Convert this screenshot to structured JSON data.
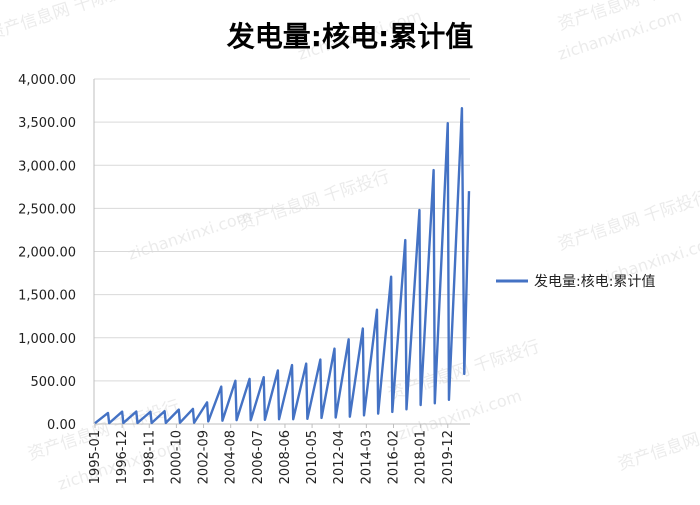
{
  "chart_data": {
    "type": "line",
    "title": "发电量:核电:累计值",
    "xlabel": "",
    "ylabel": "",
    "ylim": [
      0,
      4000
    ],
    "y_ticks": [
      0,
      500,
      1000,
      1500,
      2000,
      2500,
      3000,
      3500,
      4000
    ],
    "y_tick_labels": [
      "0.00",
      "500.00",
      "1,000.00",
      "1,500.00",
      "2,000.00",
      "2,500.00",
      "3,000.00",
      "3,500.00",
      "4,000.00"
    ],
    "x_tick_labels": [
      "1995-01",
      "1996-12",
      "1998-11",
      "2000-10",
      "2002-09",
      "2004-08",
      "2006-07",
      "2008-06",
      "2010-05",
      "2012-04",
      "2014-03",
      "2016-02",
      "2018-01",
      "2019-12"
    ],
    "grid": "horizontal",
    "legend_position": "right",
    "line_color": "#4472C4",
    "series": [
      {
        "name": "发电量:核电:累计值",
        "points": [
          [
            "1995-01",
            10
          ],
          [
            "1995-12",
            128
          ],
          [
            "1996-01",
            10
          ],
          [
            "1996-12",
            143
          ],
          [
            "1997-01",
            12
          ],
          [
            "1997-12",
            144
          ],
          [
            "1998-01",
            12
          ],
          [
            "1998-12",
            142
          ],
          [
            "1999-01",
            12
          ],
          [
            "1999-12",
            149
          ],
          [
            "2000-01",
            13
          ],
          [
            "2000-12",
            167
          ],
          [
            "2001-01",
            15
          ],
          [
            "2001-12",
            175
          ],
          [
            "2002-01",
            15
          ],
          [
            "2002-12",
            251
          ],
          [
            "2003-01",
            30
          ],
          [
            "2003-12",
            433
          ],
          [
            "2004-01",
            38
          ],
          [
            "2004-12",
            501
          ],
          [
            "2005-01",
            45
          ],
          [
            "2005-12",
            523
          ],
          [
            "2006-01",
            44
          ],
          [
            "2006-12",
            543
          ],
          [
            "2007-01",
            48
          ],
          [
            "2007-12",
            621
          ],
          [
            "2008-01",
            55
          ],
          [
            "2008-12",
            683
          ],
          [
            "2009-01",
            55
          ],
          [
            "2009-12",
            700
          ],
          [
            "2010-01",
            60
          ],
          [
            "2010-12",
            747
          ],
          [
            "2011-01",
            70
          ],
          [
            "2011-12",
            874
          ],
          [
            "2012-01",
            75
          ],
          [
            "2012-12",
            982
          ],
          [
            "2013-01",
            85
          ],
          [
            "2013-12",
            1107
          ],
          [
            "2014-01",
            100
          ],
          [
            "2014-12",
            1325
          ],
          [
            "2015-01",
            120
          ],
          [
            "2015-12",
            1708
          ],
          [
            "2016-01",
            140
          ],
          [
            "2016-12",
            2132
          ],
          [
            "2017-01",
            170
          ],
          [
            "2017-12",
            2481
          ],
          [
            "2018-01",
            220
          ],
          [
            "2018-12",
            2944
          ],
          [
            "2019-01",
            240
          ],
          [
            "2019-12",
            3487
          ],
          [
            "2020-01",
            280
          ],
          [
            "2020-12",
            3662
          ],
          [
            "2021-02",
            580
          ],
          [
            "2021-06",
            2700
          ]
        ]
      }
    ]
  },
  "watermarks": [
    "资产信息网 千际投行",
    "zichanxinxi.com"
  ]
}
